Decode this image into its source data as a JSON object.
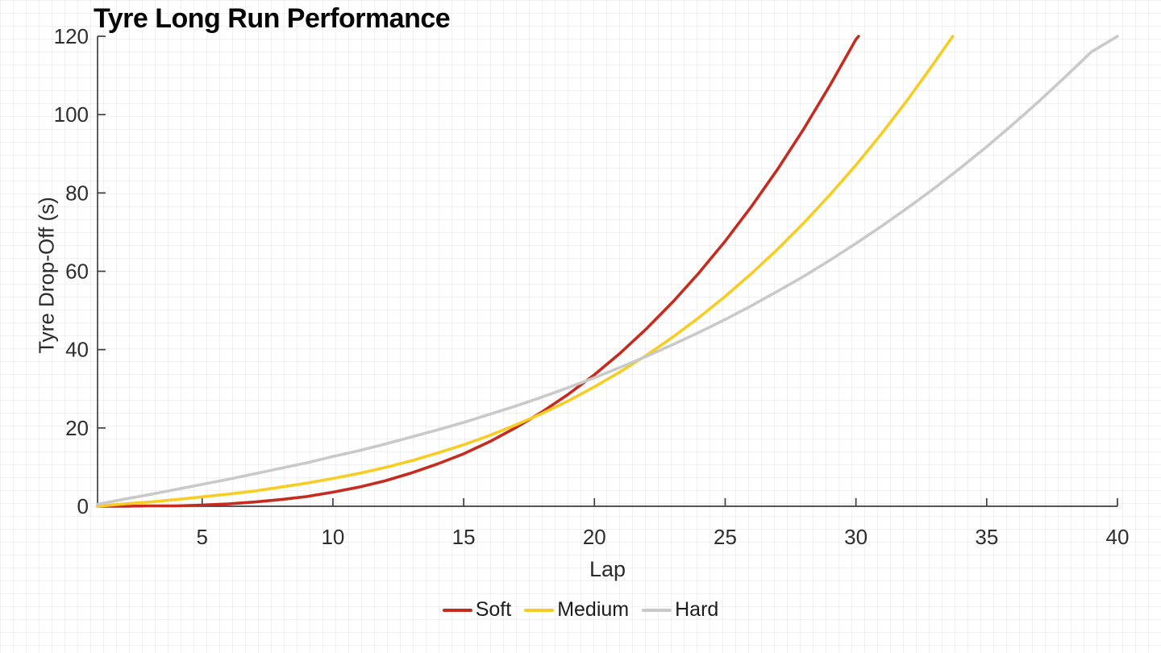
{
  "chart_data": {
    "type": "line",
    "title": "Tyre Long Run Performance",
    "xlabel": "Lap",
    "ylabel": "Tyre Drop-Off (s)",
    "xlim": [
      1,
      40
    ],
    "ylim": [
      0,
      120
    ],
    "x_ticks": [
      5,
      10,
      15,
      20,
      25,
      30,
      35,
      40
    ],
    "y_ticks": [
      0,
      20,
      40,
      60,
      80,
      100,
      120
    ],
    "grid": "fine 16px graph-paper background, no major gridlines",
    "legend_position": "bottom-center",
    "axis_color": "#3f3f3f",
    "tick_label_color": "#2e2e2e",
    "series": [
      {
        "name": "Soft",
        "color": "#C62B20",
        "points": [
          [
            1,
            0
          ],
          [
            2,
            0
          ],
          [
            3,
            0.1
          ],
          [
            4,
            0.1
          ],
          [
            5,
            0.3
          ],
          [
            6,
            0.6
          ],
          [
            7,
            1.1
          ],
          [
            8,
            1.7
          ],
          [
            9,
            2.5
          ],
          [
            10,
            3.6
          ],
          [
            11,
            4.9
          ],
          [
            12,
            6.5
          ],
          [
            13,
            8.5
          ],
          [
            14,
            10.8
          ],
          [
            15,
            13.4
          ],
          [
            16,
            16.5
          ],
          [
            17,
            20.1
          ],
          [
            18,
            24.1
          ],
          [
            19,
            28.6
          ],
          [
            20,
            33.6
          ],
          [
            21,
            39.2
          ],
          [
            22,
            45.4
          ],
          [
            23,
            52.2
          ],
          [
            24,
            59.6
          ],
          [
            25,
            67.7
          ],
          [
            26,
            76.5
          ],
          [
            27,
            86.0
          ],
          [
            28,
            96.3
          ],
          [
            29,
            107.4
          ],
          [
            30,
            119.2
          ],
          [
            30.1,
            120
          ]
        ]
      },
      {
        "name": "Medium",
        "color": "#F7CD23",
        "points": [
          [
            1,
            0
          ],
          [
            2,
            0.6
          ],
          [
            3,
            1.1
          ],
          [
            4,
            1.7
          ],
          [
            5,
            2.4
          ],
          [
            6,
            3.1
          ],
          [
            7,
            3.9
          ],
          [
            8,
            4.9
          ],
          [
            9,
            5.9
          ],
          [
            10,
            7.1
          ],
          [
            11,
            8.4
          ],
          [
            12,
            9.9
          ],
          [
            13,
            11.6
          ],
          [
            14,
            13.6
          ],
          [
            15,
            15.7
          ],
          [
            16,
            18.1
          ],
          [
            17,
            20.8
          ],
          [
            18,
            23.7
          ],
          [
            19,
            26.9
          ],
          [
            20,
            30.5
          ],
          [
            21,
            34.4
          ],
          [
            22,
            38.6
          ],
          [
            23,
            43.2
          ],
          [
            24,
            48.2
          ],
          [
            25,
            53.6
          ],
          [
            26,
            59.4
          ],
          [
            27,
            65.6
          ],
          [
            28,
            72.3
          ],
          [
            29,
            79.5
          ],
          [
            30,
            87.1
          ],
          [
            31,
            95.3
          ],
          [
            32,
            104.0
          ],
          [
            33,
            113.3
          ],
          [
            33.7,
            120
          ]
        ]
      },
      {
        "name": "Hard",
        "color": "#C9C9C9",
        "points": [
          [
            1,
            0.5
          ],
          [
            2,
            1.8
          ],
          [
            3,
            3.0
          ],
          [
            4,
            4.3
          ],
          [
            5,
            5.6
          ],
          [
            6,
            6.9
          ],
          [
            7,
            8.3
          ],
          [
            8,
            9.7
          ],
          [
            9,
            11.1
          ],
          [
            10,
            12.7
          ],
          [
            11,
            14.2
          ],
          [
            12,
            15.9
          ],
          [
            13,
            17.7
          ],
          [
            14,
            19.5
          ],
          [
            15,
            21.4
          ],
          [
            16,
            23.5
          ],
          [
            17,
            25.6
          ],
          [
            18,
            27.9
          ],
          [
            19,
            30.3
          ],
          [
            20,
            32.8
          ],
          [
            21,
            35.5
          ],
          [
            22,
            38.3
          ],
          [
            23,
            41.3
          ],
          [
            24,
            44.4
          ],
          [
            25,
            47.7
          ],
          [
            26,
            51.2
          ],
          [
            27,
            54.9
          ],
          [
            28,
            58.7
          ],
          [
            29,
            62.8
          ],
          [
            30,
            67.1
          ],
          [
            31,
            71.6
          ],
          [
            32,
            76.3
          ],
          [
            33,
            81.2
          ],
          [
            34,
            86.4
          ],
          [
            35,
            91.8
          ],
          [
            36,
            97.5
          ],
          [
            37,
            103.4
          ],
          [
            38,
            109.6
          ],
          [
            39,
            116.0
          ],
          [
            40,
            120
          ]
        ]
      }
    ]
  }
}
